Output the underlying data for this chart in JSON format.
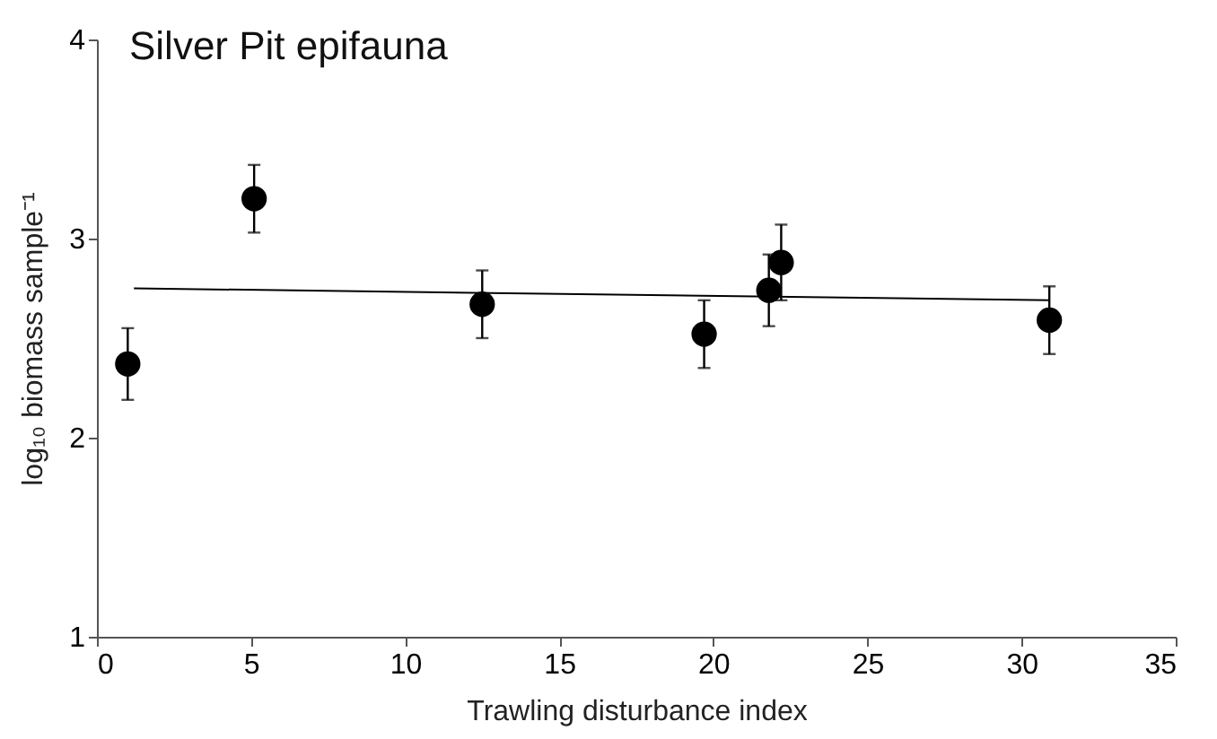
{
  "chart_data": {
    "type": "scatter",
    "title": "Silver Pit epifauna",
    "xlabel": "Trawling disturbance index",
    "ylabel": "log₁₀ biomass sample⁻¹",
    "xlim": [
      0,
      35
    ],
    "xticks": [
      0,
      5,
      10,
      15,
      20,
      25,
      30,
      35
    ],
    "ylim": [
      1,
      4
    ],
    "yticks": [
      1,
      2,
      3,
      4
    ],
    "grid": false,
    "series": [
      {
        "color": "#000000",
        "marker": "circle",
        "x": [
          1.0,
          5.1,
          12.5,
          19.7,
          21.8,
          22.2,
          30.9
        ],
        "values": [
          2.37,
          3.2,
          2.67,
          2.52,
          2.74,
          2.88,
          2.59
        ],
        "errors": [
          0.18,
          0.17,
          0.17,
          0.17,
          0.18,
          0.19,
          0.17
        ]
      },
      {
        "type": "line",
        "color": "#000000",
        "x": [
          1.2,
          30.9
        ],
        "values": [
          2.75,
          2.69
        ]
      }
    ]
  }
}
